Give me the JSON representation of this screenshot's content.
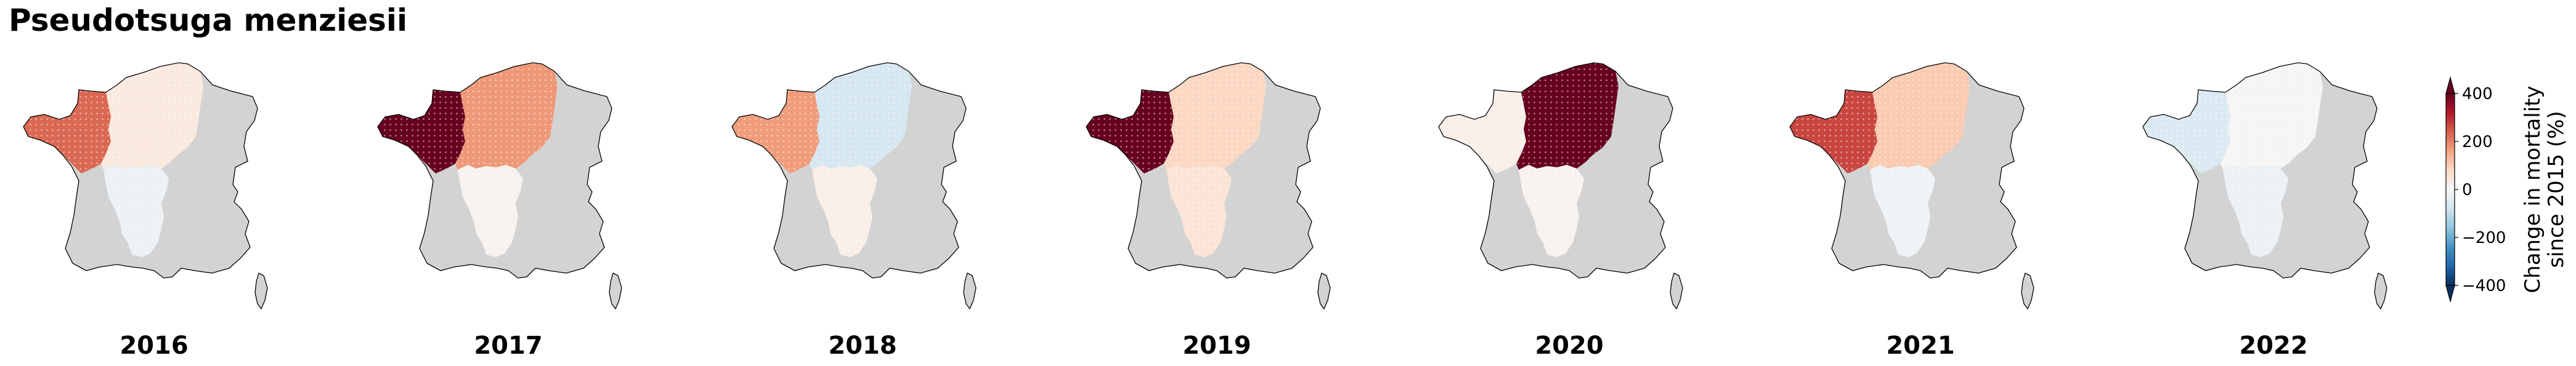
{
  "title": "Pseudotsuga menziesii",
  "colors": {
    "unsampled": "#d3d3d3",
    "outline": "#000000",
    "diverging_scale": [
      "#053061",
      "#2166ac",
      "#4393c3",
      "#92c5de",
      "#d1e5f0",
      "#f7f7f7",
      "#fddbc7",
      "#f4a582",
      "#d6604d",
      "#b2182b",
      "#67001f"
    ]
  },
  "chart_data": {
    "type": "choropleth-map-series",
    "regions": [
      "west",
      "centre-north",
      "centre-south"
    ],
    "value_range": [
      -400,
      400
    ],
    "panels": [
      {
        "year": "2016",
        "values": {
          "west": 230,
          "centre-north": 40,
          "centre-south": -25
        },
        "hatched": [
          "west",
          "centre-north",
          "centre-south"
        ]
      },
      {
        "year": "2017",
        "values": {
          "west": 400,
          "centre-north": 175,
          "centre-south": 15
        },
        "hatched": [
          "west",
          "centre-north",
          "centre-south"
        ]
      },
      {
        "year": "2018",
        "values": {
          "west": 170,
          "centre-north": -70,
          "centre-south": 25
        },
        "hatched": [
          "west",
          "centre-north",
          "centre-south"
        ]
      },
      {
        "year": "2019",
        "values": {
          "west": 400,
          "centre-north": 85,
          "centre-south": 55
        },
        "hatched": [
          "west",
          "centre-north",
          "centre-south"
        ]
      },
      {
        "year": "2020",
        "values": {
          "west": 25,
          "centre-north": 400,
          "centre-south": 15
        },
        "hatched": [
          "west",
          "centre-north",
          "centre-south"
        ]
      },
      {
        "year": "2021",
        "values": {
          "west": 270,
          "centre-north": 105,
          "centre-south": -20
        },
        "hatched": [
          "west",
          "centre-north",
          "centre-south"
        ]
      },
      {
        "year": "2022",
        "values": {
          "west": -60,
          "centre-north": 5,
          "centre-south": -25
        },
        "hatched": [
          "west",
          "centre-north",
          "centre-south"
        ]
      }
    ],
    "colorbar": {
      "label_line1": "Change in mortality",
      "label_line2": "since 2015 (%)",
      "ticks": [
        "400",
        "200",
        "0",
        "−200",
        "−400"
      ],
      "tick_values": [
        400,
        200,
        0,
        -200,
        -400
      ],
      "extend": "both"
    }
  }
}
